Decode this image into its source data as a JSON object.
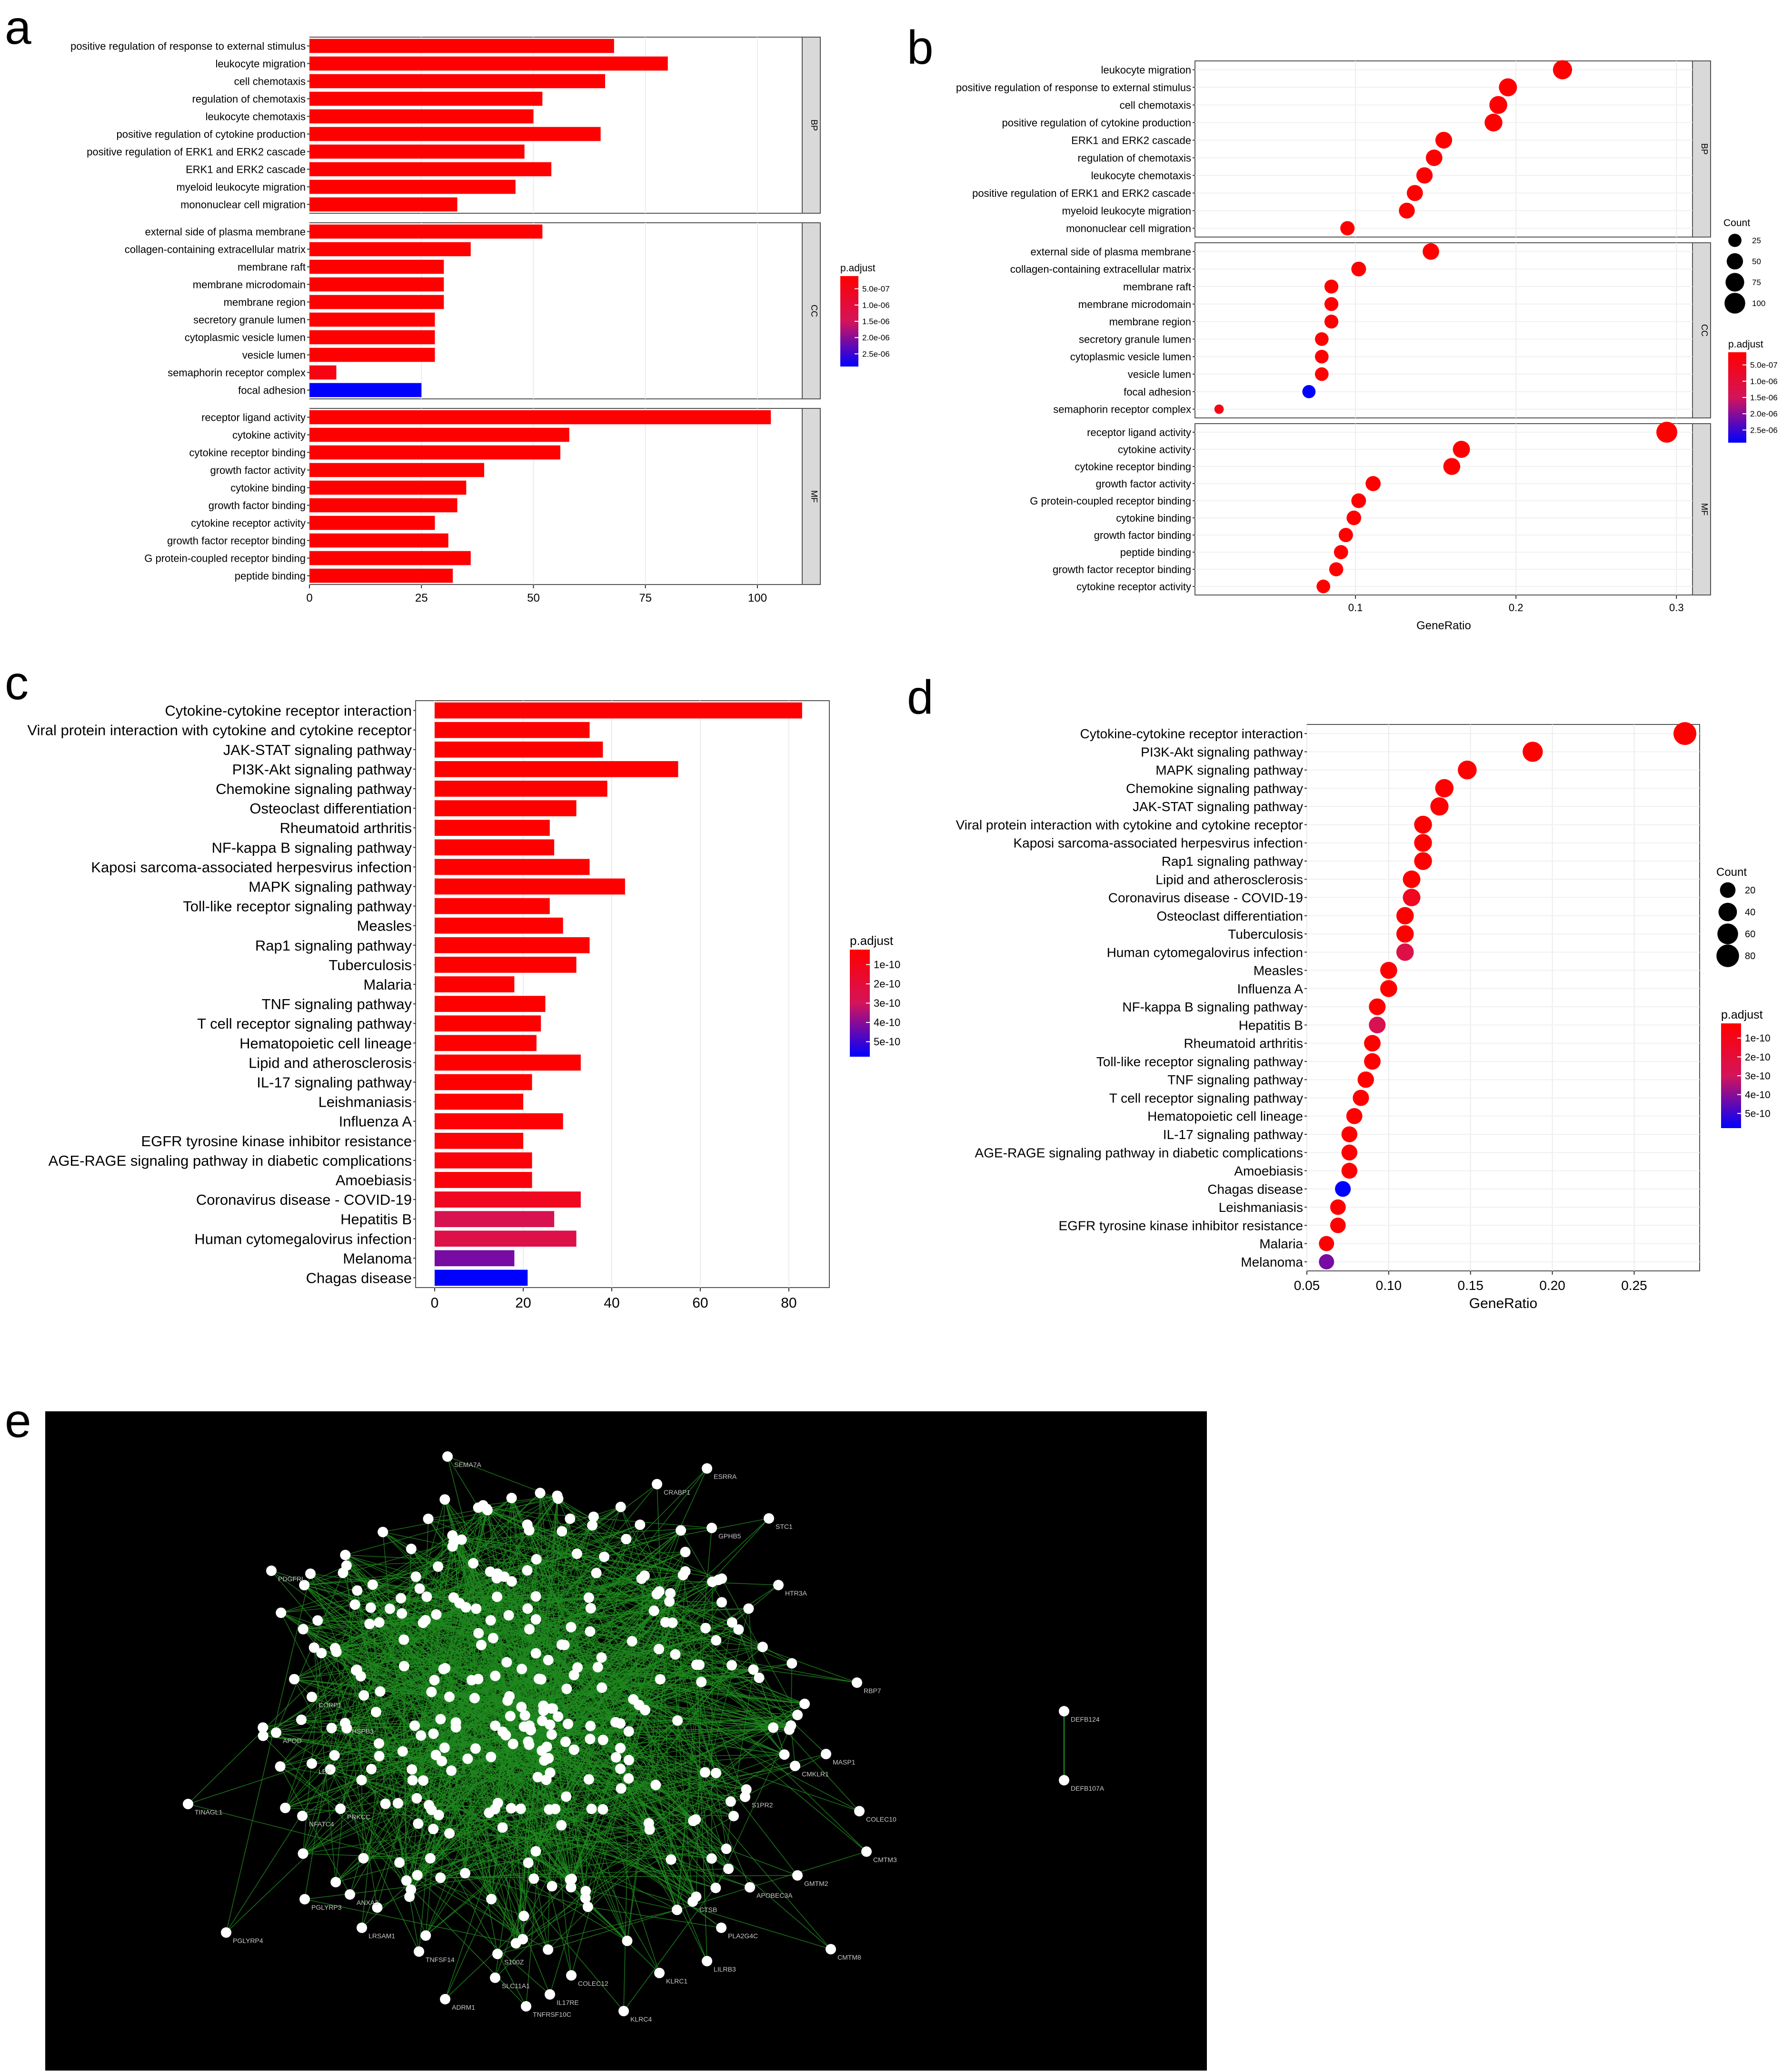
{
  "panel_labels": {
    "a": "a",
    "b": "b",
    "c": "c",
    "d": "d",
    "e": "e"
  },
  "colors": {
    "grad_top": "#ff0000",
    "grad_mid": "#d4145a",
    "grad_bottom": "#0000ff",
    "facet": "#d9d9d9",
    "network_bg": "#000000",
    "edge": "#1f8a1f",
    "node": "#ffffff"
  },
  "chart_data": [
    {
      "id": "a",
      "type": "bar",
      "orientation": "horizontal",
      "xticks": [
        "0",
        "25",
        "50",
        "75",
        "100"
      ],
      "xlim": [
        0,
        110
      ],
      "legend": {
        "title": "p.adjust",
        "ticks": [
          "5.0e-07",
          "1.0e-06",
          "1.5e-06",
          "2.0e-06",
          "2.5e-06"
        ]
      },
      "facets": [
        {
          "name": "BP",
          "categories": [
            "positive regulation of response to external stimulus",
            "leukocyte migration",
            "cell chemotaxis",
            "regulation of chemotaxis",
            "leukocyte chemotaxis",
            "positive regulation of cytokine production",
            "positive regulation of ERK1 and ERK2 cascade",
            "ERK1 and ERK2 cascade",
            "myeloid leukocyte migration",
            "mononuclear cell migration"
          ],
          "values": [
            68,
            80,
            66,
            52,
            50,
            65,
            48,
            54,
            46,
            33
          ],
          "padj": [
            0,
            0,
            0,
            0,
            0,
            0,
            0,
            0,
            0,
            0
          ]
        },
        {
          "name": "CC",
          "categories": [
            "external side of plasma membrane",
            "collagen-containing extracellular matrix",
            "membrane raft",
            "membrane microdomain",
            "membrane region",
            "secretory granule lumen",
            "cytoplasmic vesicle lumen",
            "vesicle lumen",
            "semaphorin receptor complex",
            "focal adhesion"
          ],
          "values": [
            52,
            36,
            30,
            30,
            30,
            28,
            28,
            28,
            6,
            25
          ],
          "padj": [
            0,
            0,
            0,
            0,
            0,
            0,
            0,
            0,
            0.1,
            1
          ]
        },
        {
          "name": "MF",
          "categories": [
            "receptor ligand activity",
            "cytokine activity",
            "cytokine receptor binding",
            "growth factor activity",
            "cytokine binding",
            "growth factor binding",
            "cytokine receptor activity",
            "growth factor receptor binding",
            "G protein-coupled receptor binding",
            "peptide binding"
          ],
          "values": [
            103,
            58,
            56,
            39,
            35,
            33,
            28,
            31,
            36,
            32
          ],
          "padj": [
            0,
            0,
            0,
            0,
            0,
            0,
            0,
            0,
            0,
            0
          ]
        }
      ]
    },
    {
      "id": "b",
      "type": "scatter",
      "xlabel": "GeneRatio",
      "xticks": [
        "0.1",
        "0.2",
        "0.3"
      ],
      "xlim": [
        0.0,
        0.31
      ],
      "size_legend": {
        "title": "Count",
        "ticks": [
          "25",
          "50",
          "75",
          "100"
        ]
      },
      "legend": {
        "title": "p.adjust",
        "ticks": [
          "5.0e-07",
          "1.0e-06",
          "1.5e-06",
          "2.0e-06",
          "2.5e-06"
        ]
      },
      "facets": [
        {
          "name": "BP",
          "categories": [
            "leukocyte migration",
            "positive regulation of response to external stimulus",
            "cell chemotaxis",
            "positive regulation of cytokine production",
            "ERK1 and ERK2 cascade",
            "regulation of chemotaxis",
            "leukocyte chemotaxis",
            "positive regulation of ERK1 and ERK2 cascade",
            "myeloid leukocyte migration",
            "mononuclear cell migration"
          ],
          "x": [
            0.229,
            0.195,
            0.189,
            0.186,
            0.155,
            0.149,
            0.143,
            0.137,
            0.132,
            0.095
          ],
          "count": [
            80,
            68,
            66,
            65,
            54,
            52,
            50,
            48,
            46,
            33
          ],
          "padj": [
            0,
            0,
            0,
            0,
            0,
            0,
            0,
            0,
            0,
            0
          ]
        },
        {
          "name": "CC",
          "categories": [
            "external side of plasma membrane",
            "collagen-containing extracellular matrix",
            "membrane raft",
            "membrane microdomain",
            "membrane region",
            "secretory granule lumen",
            "cytoplasmic vesicle lumen",
            "vesicle lumen",
            "focal adhesion",
            "semaphorin receptor complex"
          ],
          "x": [
            0.147,
            0.102,
            0.085,
            0.085,
            0.085,
            0.079,
            0.079,
            0.079,
            0.071,
            0.015
          ],
          "count": [
            52,
            36,
            30,
            30,
            30,
            28,
            28,
            28,
            25,
            6
          ],
          "padj": [
            0,
            0,
            0,
            0,
            0,
            0,
            0,
            0,
            1,
            0.1
          ]
        },
        {
          "name": "MF",
          "categories": [
            "receptor ligand activity",
            "cytokine activity",
            "cytokine receptor binding",
            "growth factor activity",
            "G protein-coupled receptor binding",
            "cytokine binding",
            "growth factor binding",
            "peptide binding",
            "growth factor receptor binding",
            "cytokine receptor activity"
          ],
          "x": [
            0.294,
            0.166,
            0.16,
            0.111,
            0.102,
            0.099,
            0.094,
            0.091,
            0.088,
            0.08
          ],
          "count": [
            103,
            58,
            56,
            39,
            36,
            35,
            33,
            32,
            31,
            28
          ],
          "padj": [
            0,
            0,
            0,
            0,
            0,
            0,
            0,
            0,
            0,
            0
          ]
        }
      ]
    },
    {
      "id": "c",
      "type": "bar",
      "orientation": "horizontal",
      "xticks": [
        "0",
        "20",
        "40",
        "60",
        "80"
      ],
      "xlim": [
        0,
        87
      ],
      "legend": {
        "title": "p.adjust",
        "ticks": [
          "1e-10",
          "2e-10",
          "3e-10",
          "4e-10",
          "5e-10"
        ]
      },
      "categories": [
        "Cytokine-cytokine receptor interaction",
        "Viral protein interaction with cytokine and cytokine receptor",
        "JAK-STAT signaling pathway",
        "PI3K-Akt signaling pathway",
        "Chemokine signaling pathway",
        "Osteoclast differentiation",
        "Rheumatoid arthritis",
        "NF-kappa B signaling pathway",
        "Kaposi sarcoma-associated herpesvirus infection",
        "MAPK signaling pathway",
        "Toll-like receptor signaling pathway",
        "Measles",
        "Rap1 signaling pathway",
        "Tuberculosis",
        "Malaria",
        "TNF signaling pathway",
        "T cell receptor signaling pathway",
        "Hematopoietic cell lineage",
        "Lipid and atherosclerosis",
        "IL-17 signaling pathway",
        "Leishmaniasis",
        "Influenza A",
        "EGFR tyrosine kinase inhibitor resistance",
        "AGE-RAGE signaling pathway in diabetic complications",
        "Amoebiasis",
        "Coronavirus disease - COVID-19",
        "Hepatitis B",
        "Human cytomegalovirus infection",
        "Melanoma",
        "Chagas disease"
      ],
      "values": [
        83,
        35,
        38,
        55,
        39,
        32,
        26,
        27,
        35,
        43,
        26,
        29,
        35,
        32,
        18,
        25,
        24,
        23,
        33,
        22,
        20,
        29,
        20,
        22,
        22,
        33,
        27,
        32,
        18,
        21
      ],
      "padj": [
        0,
        0,
        0,
        0,
        0,
        0,
        0,
        0,
        0,
        0,
        0,
        0,
        0,
        0,
        0,
        0,
        0,
        0,
        0,
        0,
        0,
        0.02,
        0.03,
        0.05,
        0.06,
        0.18,
        0.45,
        0.4,
        0.72,
        1
      ]
    },
    {
      "id": "d",
      "type": "scatter",
      "xlabel": "GeneRatio",
      "xticks": [
        "0.05",
        "0.10",
        "0.15",
        "0.20",
        "0.25"
      ],
      "xlim": [
        0.05,
        0.29
      ],
      "size_legend": {
        "title": "Count",
        "ticks": [
          "20",
          "40",
          "60",
          "80"
        ]
      },
      "legend": {
        "title": "p.adjust",
        "ticks": [
          "1e-10",
          "2e-10",
          "3e-10",
          "4e-10",
          "5e-10"
        ]
      },
      "categories": [
        "Cytokine-cytokine receptor interaction",
        "PI3K-Akt signaling pathway",
        "MAPK signaling pathway",
        "Chemokine signaling pathway",
        "JAK-STAT signaling pathway",
        "Viral protein interaction with cytokine and cytokine receptor",
        "Kaposi sarcoma-associated herpesvirus infection",
        "Rap1 signaling pathway",
        "Lipid and atherosclerosis",
        "Coronavirus disease - COVID-19",
        "Osteoclast differentiation",
        "Tuberculosis",
        "Human cytomegalovirus infection",
        "Measles",
        "Influenza A",
        "NF-kappa B signaling pathway",
        "Hepatitis B",
        "Rheumatoid arthritis",
        "Toll-like receptor signaling pathway",
        "TNF signaling pathway",
        "T cell receptor signaling pathway",
        "Hematopoietic cell lineage",
        "IL-17 signaling pathway",
        "AGE-RAGE signaling pathway in diabetic complications",
        "Amoebiasis",
        "Chagas disease",
        "Leishmaniasis",
        "EGFR tyrosine kinase inhibitor resistance",
        "Malaria",
        "Melanoma"
      ],
      "x": [
        0.281,
        0.188,
        0.148,
        0.134,
        0.131,
        0.121,
        0.121,
        0.121,
        0.114,
        0.114,
        0.11,
        0.11,
        0.11,
        0.1,
        0.1,
        0.093,
        0.093,
        0.09,
        0.09,
        0.086,
        0.083,
        0.079,
        0.076,
        0.076,
        0.076,
        0.072,
        0.069,
        0.069,
        0.062,
        0.062
      ],
      "count": [
        83,
        55,
        43,
        39,
        38,
        35,
        35,
        35,
        33,
        33,
        32,
        32,
        32,
        29,
        29,
        27,
        27,
        26,
        26,
        25,
        24,
        23,
        22,
        22,
        22,
        21,
        20,
        20,
        18,
        18
      ],
      "padj": [
        0,
        0,
        0,
        0,
        0,
        0,
        0,
        0,
        0,
        0.18,
        0,
        0,
        0.4,
        0,
        0,
        0,
        0.45,
        0,
        0,
        0,
        0,
        0,
        0,
        0,
        0,
        1,
        0,
        0,
        0,
        0.72
      ]
    }
  ],
  "network": {
    "peripheral_labels": [
      "SEMA7A",
      "ESRRA",
      "CRABP1",
      "GPHB5",
      "STC1",
      "HTR3A",
      "PDGFRL",
      "RBP7",
      "CORP1",
      "APOD",
      "MASP1",
      "CMKLR1",
      "TINAGL1",
      "NFATC4",
      "COLEC10",
      "CMTM3",
      "PGLYRP3",
      "PGLYRP4",
      "LRSAM1",
      "TNFSF14",
      "ADRM1",
      "TNFRSF10C",
      "KLRC4",
      "KLRC1",
      "LILRB3",
      "CMTM8",
      "APOBEC3A",
      "GMTM2",
      "CTSB",
      "S1PR2",
      "DEFB124",
      "DEFB107A",
      "COLEC12",
      "IL17RE",
      "SLC11A1",
      "S100Z",
      "PLA2G4C",
      "ANXA3",
      "PRKCC",
      "HSPB3",
      "LEP"
    ],
    "isolated_pair": [
      "DEFB124",
      "DEFB107A"
    ]
  }
}
